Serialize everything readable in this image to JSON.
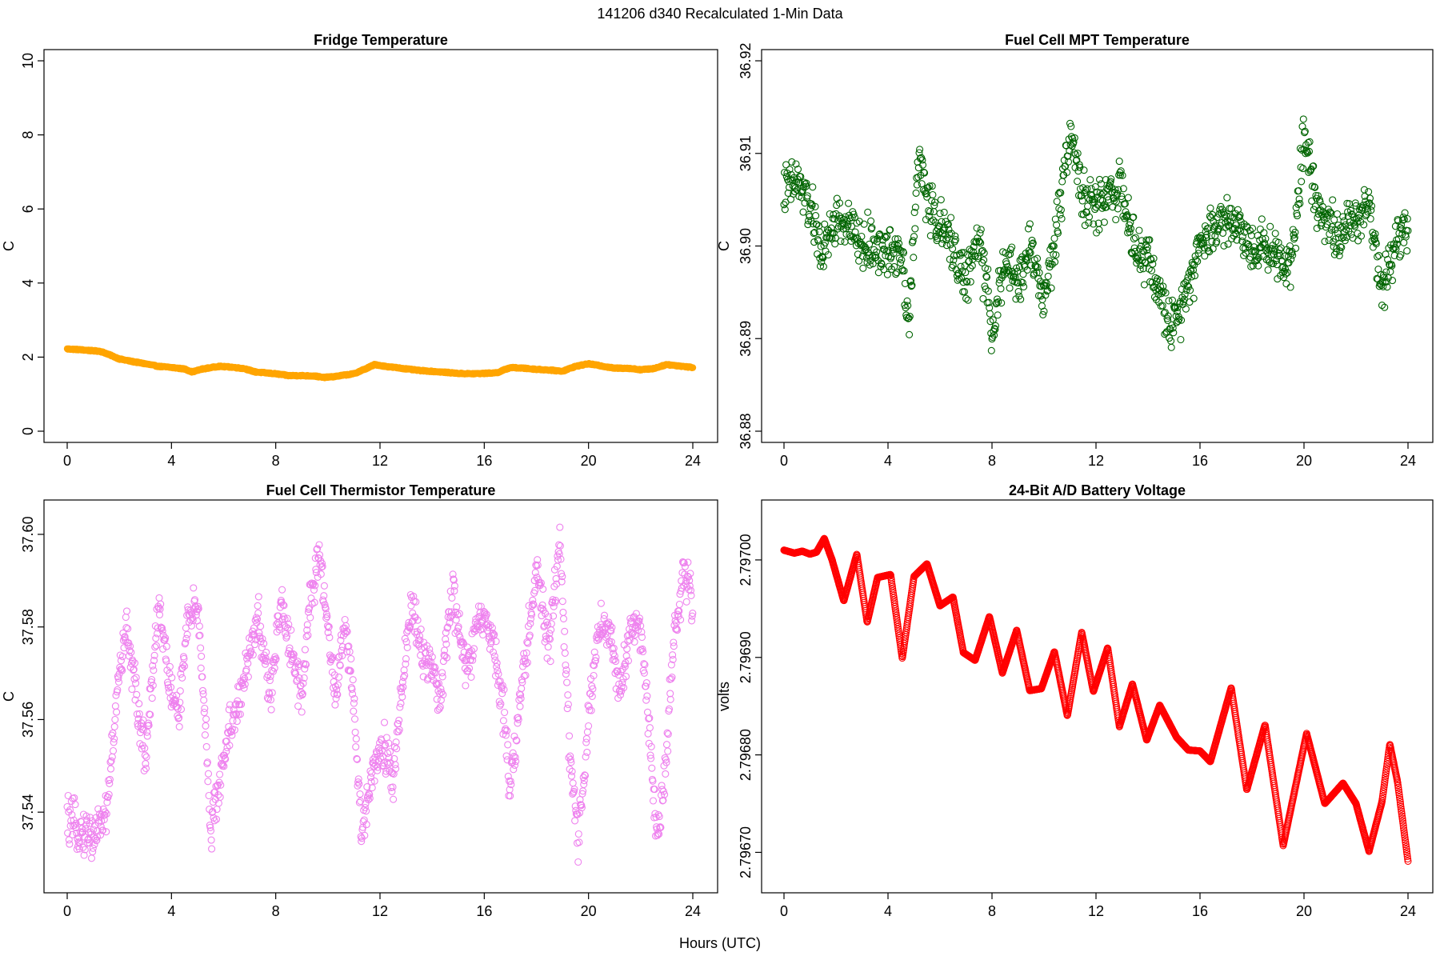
{
  "figure": {
    "title": "141206   d340   Recalculated 1-Min Data",
    "xlabel": "Hours (UTC)"
  },
  "chart_data": [
    {
      "id": "fridge",
      "type": "scatter",
      "title": "Fridge Temperature",
      "xlabel": "",
      "ylabel": "C",
      "color": "#FFA500",
      "xlim": [
        0,
        24
      ],
      "ylim": [
        0,
        10
      ],
      "xticks": [
        0,
        4,
        8,
        12,
        16,
        20,
        24
      ],
      "xtick_labels": [
        "0",
        "4",
        "8",
        "12",
        "16",
        "20",
        "24"
      ],
      "yticks": [
        0,
        2,
        4,
        6,
        8,
        10
      ],
      "ytick_labels": [
        "0",
        "2",
        "4",
        "6",
        "8",
        "10"
      ],
      "series": [
        {
          "name": "Fridge Temperature",
          "x": [
            0,
            0.5,
            1,
            1.25,
            1.5,
            2,
            2.5,
            3,
            3.5,
            4,
            4.5,
            4.8,
            5.2,
            5.8,
            6.3,
            6.8,
            7.2,
            8,
            8.5,
            9,
            9.5,
            9.8,
            10.2,
            11,
            11.5,
            11.8,
            12.2,
            12.8,
            13.5,
            14.5,
            15,
            15.5,
            16,
            16.5,
            17,
            17.5,
            18,
            18.5,
            19,
            19.5,
            20,
            20.5,
            21,
            21.5,
            22,
            22.5,
            23,
            23.5,
            24
          ],
          "y": [
            2.22,
            2.2,
            2.17,
            2.16,
            2.1,
            1.95,
            1.88,
            1.82,
            1.75,
            1.72,
            1.68,
            1.6,
            1.68,
            1.75,
            1.73,
            1.69,
            1.6,
            1.55,
            1.5,
            1.5,
            1.49,
            1.45,
            1.47,
            1.55,
            1.7,
            1.8,
            1.75,
            1.7,
            1.64,
            1.59,
            1.56,
            1.55,
            1.56,
            1.58,
            1.72,
            1.7,
            1.67,
            1.65,
            1.62,
            1.75,
            1.82,
            1.76,
            1.7,
            1.7,
            1.66,
            1.69,
            1.8,
            1.76,
            1.72
          ]
        }
      ]
    },
    {
      "id": "mpt",
      "type": "scatter",
      "title": "Fuel Cell MPT Temperature",
      "xlabel": "",
      "ylabel": "C",
      "color": "#006400",
      "xlim": [
        0,
        24
      ],
      "ylim": [
        36.88,
        36.92
      ],
      "xticks": [
        0,
        4,
        8,
        12,
        16,
        20,
        24
      ],
      "xtick_labels": [
        "0",
        "4",
        "8",
        "12",
        "16",
        "20",
        "24"
      ],
      "yticks": [
        36.88,
        36.89,
        36.9,
        36.91,
        36.92
      ],
      "ytick_labels": [
        "36.88",
        "36.89",
        "36.90",
        "36.91",
        "36.92"
      ],
      "trend": {
        "x": [
          0,
          0.5,
          1,
          1.5,
          2,
          2.5,
          3,
          3.5,
          4,
          4.5,
          4.8,
          5.2,
          5.5,
          6,
          6.5,
          7,
          7.5,
          8,
          8.5,
          9,
          9.5,
          10,
          10.5,
          11,
          11.5,
          12,
          12.5,
          13,
          13.5,
          14,
          14.5,
          15,
          15.5,
          16,
          16.5,
          17,
          17.5,
          18,
          18.5,
          19,
          19.5,
          20,
          20.5,
          21,
          21.5,
          22,
          22.5,
          23,
          23.5,
          24
        ],
        "y": [
          36.906,
          36.907,
          36.904,
          36.899,
          36.903,
          36.902,
          36.9,
          36.9,
          36.899,
          36.9,
          36.892,
          36.91,
          36.905,
          36.902,
          36.9,
          36.896,
          36.901,
          36.891,
          36.898,
          36.896,
          36.9,
          36.894,
          36.902,
          36.913,
          36.905,
          36.904,
          36.906,
          36.906,
          36.899,
          36.899,
          36.894,
          36.891,
          36.896,
          36.9,
          36.902,
          36.903,
          36.902,
          36.9,
          36.9,
          36.899,
          36.898,
          36.912,
          36.905,
          36.902,
          36.901,
          36.903,
          36.905,
          36.895,
          36.901,
          36.902
        ]
      },
      "noise_amplitude": 0.004,
      "sample_interval_hours": 0.02
    },
    {
      "id": "thermistor",
      "type": "scatter",
      "title": "Fuel Cell Thermistor Temperature",
      "xlabel": "",
      "ylabel": "C",
      "color": "#EE82EE",
      "xlim": [
        0,
        24
      ],
      "ylim": [
        37.525,
        37.605
      ],
      "xticks": [
        0,
        4,
        8,
        12,
        16,
        20,
        24
      ],
      "xtick_labels": [
        "0",
        "4",
        "8",
        "12",
        "16",
        "20",
        "24"
      ],
      "yticks": [
        37.54,
        37.56,
        37.58,
        37.6
      ],
      "ytick_labels": [
        "37.54",
        "37.56",
        "37.58",
        "37.60"
      ],
      "trend": {
        "x": [
          0,
          0.5,
          1,
          1.5,
          2,
          2.3,
          2.7,
          3,
          3.5,
          4,
          4.3,
          4.6,
          5,
          5.3,
          5.5,
          5.8,
          6.2,
          6.7,
          7,
          7.3,
          7.8,
          8.2,
          8.5,
          9,
          9.3,
          9.7,
          10.3,
          10.6,
          10.9,
          11.3,
          11.7,
          12.2,
          12.5,
          12.8,
          13.2,
          13.6,
          14.3,
          14.8,
          15.3,
          15.8,
          16.3,
          16.7,
          17,
          17.5,
          18,
          18.5,
          18.9,
          19.3,
          19.6,
          20,
          20.4,
          20.8,
          21.2,
          21.6,
          22,
          22.3,
          22.6,
          22.9,
          23.3,
          23.7,
          24
        ],
        "y": [
          37.538,
          37.536,
          37.535,
          37.54,
          37.57,
          37.58,
          37.562,
          37.552,
          37.585,
          37.565,
          37.562,
          37.58,
          37.585,
          37.56,
          37.535,
          37.545,
          37.558,
          37.565,
          37.575,
          37.582,
          37.565,
          37.585,
          37.578,
          37.565,
          37.585,
          37.595,
          37.565,
          37.58,
          37.57,
          37.535,
          37.55,
          37.555,
          37.545,
          37.565,
          37.585,
          37.575,
          37.565,
          37.588,
          37.57,
          37.582,
          37.578,
          37.565,
          37.545,
          37.57,
          37.592,
          37.575,
          37.6,
          37.55,
          37.535,
          37.56,
          37.58,
          37.58,
          37.565,
          37.58,
          37.58,
          37.56,
          37.535,
          37.545,
          37.58,
          37.592,
          37.585
        ]
      },
      "noise_amplitude": 0.007,
      "sample_interval_hours": 0.018
    },
    {
      "id": "battery",
      "type": "scatter",
      "title": "24-Bit A/D Battery Voltage",
      "xlabel": "",
      "ylabel": "volts",
      "color": "#FF0000",
      "xlim": [
        0,
        24
      ],
      "ylim": [
        2.79667,
        2.79705
      ],
      "xticks": [
        0,
        4,
        8,
        12,
        16,
        20,
        24
      ],
      "xtick_labels": [
        "0",
        "4",
        "8",
        "12",
        "16",
        "20",
        "24"
      ],
      "yticks": [
        2.7967,
        2.7968,
        2.7969,
        2.797
      ],
      "ytick_labels": [
        "2.79670",
        "2.79680",
        "2.79690",
        "2.79700"
      ],
      "series": [
        {
          "name": "24-Bit A/D Battery Voltage",
          "x": [
            0,
            0.4,
            0.7,
            1,
            1.25,
            1.55,
            1.85,
            2.3,
            2.8,
            3.2,
            3.6,
            4.1,
            4.55,
            5,
            5.5,
            6,
            6.5,
            6.9,
            7.35,
            7.9,
            8.4,
            8.95,
            9.45,
            9.9,
            10.4,
            10.9,
            11.45,
            11.9,
            12.45,
            12.9,
            13.4,
            13.95,
            14.45,
            15.1,
            15.55,
            16,
            16.4,
            17.2,
            17.8,
            18.5,
            19.2,
            20.1,
            20.8,
            21.5,
            22,
            22.5,
            23,
            23.3,
            23.6,
            24
          ],
          "y": [
            2.79701,
            2.797007,
            2.797009,
            2.797006,
            2.797008,
            2.797022,
            2.797,
            2.796958,
            2.797006,
            2.796936,
            2.796982,
            2.796985,
            2.796899,
            2.796983,
            2.796996,
            2.796953,
            2.796962,
            2.796905,
            2.796897,
            2.796942,
            2.796884,
            2.796928,
            2.796866,
            2.796868,
            2.796906,
            2.79684,
            2.796926,
            2.796865,
            2.79691,
            2.796829,
            2.796873,
            2.796815,
            2.796851,
            2.796818,
            2.796805,
            2.796804,
            2.796793,
            2.796869,
            2.796764,
            2.796831,
            2.796707,
            2.796822,
            2.79675,
            2.796771,
            2.79675,
            2.796701,
            2.796752,
            2.796811,
            2.796772,
            2.796691
          ]
        }
      ]
    }
  ]
}
